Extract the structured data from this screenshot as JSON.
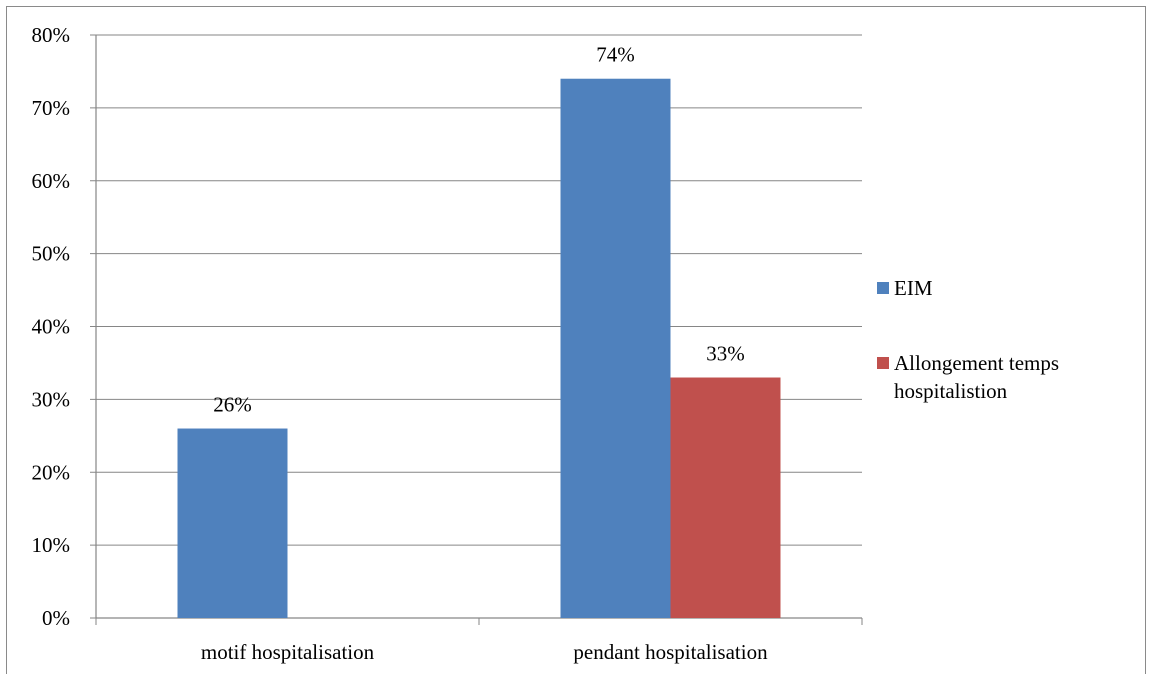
{
  "chart_data": {
    "type": "bar",
    "title": "",
    "xlabel": "",
    "ylabel": "",
    "categories": [
      "motif hospitalisation",
      "pendant hospitalisation"
    ],
    "series": [
      {
        "name": "EIM",
        "color": "#4F81BD",
        "values": [
          26,
          74
        ],
        "labels": [
          "26%",
          "74%"
        ]
      },
      {
        "name": "Allongement temps hospitalistion",
        "color": "#C0504D",
        "values": [
          null,
          33
        ],
        "labels": [
          "",
          "33%"
        ]
      }
    ],
    "ylim": [
      0,
      80
    ],
    "yticks": [
      0,
      10,
      20,
      30,
      40,
      50,
      60,
      70,
      80
    ],
    "ytick_labels": [
      "0%",
      "10%",
      "20%",
      "30%",
      "40%",
      "50%",
      "60%",
      "70%",
      "80%"
    ],
    "grid": true,
    "legend_position": "right",
    "legend": [
      {
        "label": "EIM",
        "color": "#4F81BD"
      },
      {
        "label_lines": [
          "Allongement temps",
          "hospitalistion"
        ],
        "color": "#C0504D"
      }
    ]
  }
}
